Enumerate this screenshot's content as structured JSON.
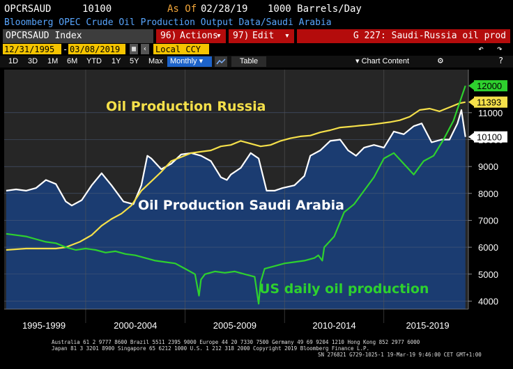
{
  "header": {
    "ticker": "OPCRSAUD",
    "value": "10100",
    "as_of_label": "As Of",
    "as_of_date": "02/28/19",
    "units": "1000 Barrels/Day",
    "description": "Bloomberg OPEC Crude Oil Production Output Data/Saudi Arabia"
  },
  "toolbar": {
    "index_label": "OPCRSAUD Index",
    "actions_num": "96)",
    "actions_label": "Actions",
    "edit_num": "97)",
    "edit_label": "Edit",
    "page_title": "G 227: Saudi-Russia oil prod",
    "start_date": "12/31/1995",
    "end_date": "03/08/2019",
    "currency": "Local CCY",
    "periods": [
      "1D",
      "3D",
      "1M",
      "6M",
      "YTD",
      "1Y",
      "5Y",
      "Max"
    ],
    "frequency": "Monthly",
    "table_label": "Table",
    "chart_content_label": "Chart Content"
  },
  "icons": {
    "undo": "undo-icon",
    "redo": "redo-icon",
    "gear": "gear-icon",
    "help": "help-icon",
    "line_chart": "line-chart-icon"
  },
  "colors": {
    "saudi": "#ffffff",
    "russia": "#f5e04a",
    "us": "#2ed12e",
    "background_top": "#2a2a2a",
    "background_area": "#1a3a6b",
    "accent_red": "#b40c0c",
    "accent_yellow": "#f5c400"
  },
  "chart_data": {
    "type": "line",
    "title": "",
    "xlabel": "",
    "ylabel": "",
    "ylim": [
      3700,
      12600
    ],
    "xlim": [
      1995.9,
      2019.25
    ],
    "y_ticks": [
      4000,
      5000,
      6000,
      7000,
      8000,
      9000,
      10000,
      11000
    ],
    "x_period_labels": [
      "1995-1999",
      "2000-2004",
      "2005-2009",
      "2010-2014",
      "2015-2019"
    ],
    "annotations": [
      {
        "text": "Oil Production Russia",
        "color": "#f5e04a"
      },
      {
        "text": "Oil Production Saudi Arabia",
        "color": "#ffffff"
      },
      {
        "text": "US daily oil production",
        "color": "#2ed12e"
      }
    ],
    "last_value_labels": [
      {
        "series": "US",
        "value": "12000"
      },
      {
        "series": "Russia",
        "value": "11393"
      },
      {
        "series": "Saudi Arabia",
        "value": "10100"
      }
    ],
    "series": [
      {
        "key": "saudi",
        "x": [
          1996.0,
          1996.5,
          1997.0,
          1997.5,
          1998.0,
          1998.5,
          1999.0,
          1999.3,
          1999.8,
          2000.3,
          2000.8,
          2001.3,
          2001.9,
          2002.4,
          2002.8,
          2003.1,
          2003.3,
          2003.8,
          2004.3,
          2004.8,
          2005.3,
          2005.8,
          2006.3,
          2006.8,
          2007.1,
          2007.3,
          2007.8,
          2008.3,
          2008.7,
          2009.1,
          2009.5,
          2009.9,
          2010.5,
          2011.0,
          2011.3,
          2011.8,
          2012.3,
          2012.8,
          2013.2,
          2013.6,
          2014.0,
          2014.5,
          2015.0,
          2015.5,
          2016.0,
          2016.5,
          2016.9,
          2017.4,
          2017.9,
          2018.3,
          2018.7,
          2018.9,
          2019.1
        ],
        "values": [
          8100,
          8150,
          8100,
          8200,
          8500,
          8350,
          7700,
          7550,
          7750,
          8300,
          8750,
          8300,
          7700,
          7600,
          8300,
          9400,
          9300,
          8900,
          9100,
          9450,
          9500,
          9400,
          9200,
          8600,
          8500,
          8700,
          8950,
          9500,
          9300,
          8100,
          8100,
          8200,
          8300,
          8650,
          9400,
          9600,
          9950,
          10000,
          9600,
          9400,
          9700,
          9800,
          9700,
          10300,
          10200,
          10500,
          10600,
          9900,
          10000,
          10000,
          10600,
          11100,
          10100
        ]
      },
      {
        "key": "russia",
        "x": [
          1996.0,
          1997.0,
          1998.0,
          1998.5,
          1999.0,
          1999.7,
          2000.3,
          2000.8,
          2001.3,
          2001.8,
          2002.3,
          2002.8,
          2003.3,
          2003.8,
          2004.3,
          2004.8,
          2005.3,
          2005.8,
          2006.3,
          2006.8,
          2007.3,
          2007.8,
          2008.3,
          2008.8,
          2009.3,
          2009.8,
          2010.3,
          2010.8,
          2011.3,
          2011.8,
          2012.3,
          2012.8,
          2013.3,
          2013.8,
          2014.3,
          2014.8,
          2015.3,
          2015.8,
          2016.3,
          2016.8,
          2017.3,
          2017.8,
          2018.3,
          2018.8,
          2019.1
        ],
        "values": [
          5900,
          5950,
          5950,
          5950,
          6000,
          6200,
          6450,
          6800,
          7050,
          7250,
          7550,
          8100,
          8450,
          8800,
          9200,
          9350,
          9500,
          9550,
          9600,
          9750,
          9800,
          9950,
          9850,
          9750,
          9800,
          9950,
          10050,
          10120,
          10150,
          10270,
          10350,
          10450,
          10480,
          10520,
          10550,
          10600,
          10650,
          10720,
          10850,
          11100,
          11150,
          11050,
          11200,
          11350,
          11393
        ]
      },
      {
        "key": "us",
        "x": [
          1996.0,
          1996.5,
          1997.0,
          1997.5,
          1998.0,
          1998.5,
          1999.0,
          1999.5,
          2000.0,
          2000.5,
          2001.0,
          2001.5,
          2002.0,
          2002.5,
          2003.0,
          2003.5,
          2004.0,
          2004.5,
          2005.0,
          2005.5,
          2005.7,
          2005.8,
          2006.0,
          2006.5,
          2007.0,
          2007.5,
          2008.0,
          2008.5,
          2008.7,
          2008.8,
          2009.0,
          2009.5,
          2010.0,
          2010.5,
          2011.0,
          2011.5,
          2011.7,
          2011.9,
          2012.0,
          2012.5,
          2013.0,
          2013.5,
          2014.0,
          2014.5,
          2015.0,
          2015.5,
          2016.0,
          2016.5,
          2017.0,
          2017.5,
          2018.0,
          2018.5,
          2019.1
        ],
        "values": [
          6500,
          6450,
          6400,
          6300,
          6200,
          6150,
          6000,
          5900,
          5950,
          5900,
          5800,
          5850,
          5750,
          5700,
          5600,
          5500,
          5450,
          5400,
          5200,
          5000,
          4200,
          4800,
          5000,
          5100,
          5050,
          5100,
          5000,
          4900,
          3900,
          4700,
          5200,
          5300,
          5400,
          5450,
          5500,
          5600,
          5700,
          5500,
          6000,
          6400,
          7300,
          7600,
          8100,
          8600,
          9300,
          9500,
          9100,
          8700,
          9200,
          9400,
          10000,
          10700,
          12000
        ]
      }
    ]
  },
  "footer": {
    "line1": "Australia 61 2 9777 8600 Brazil 5511 2395 9000 Europe 44 20 7330 7500 Germany 49 69 9204 1210 Hong Kong 852 2977 6000",
    "line2": "Japan 81 3 3201 8900          Singapore 65 6212 1000          U.S. 1 212 318 2000          Copyright 2019 Bloomberg Finance L.P.",
    "line3": "SN 276821 G729-1025-1 19-Mar-19  9:46:00 CET  GMT+1:00"
  }
}
